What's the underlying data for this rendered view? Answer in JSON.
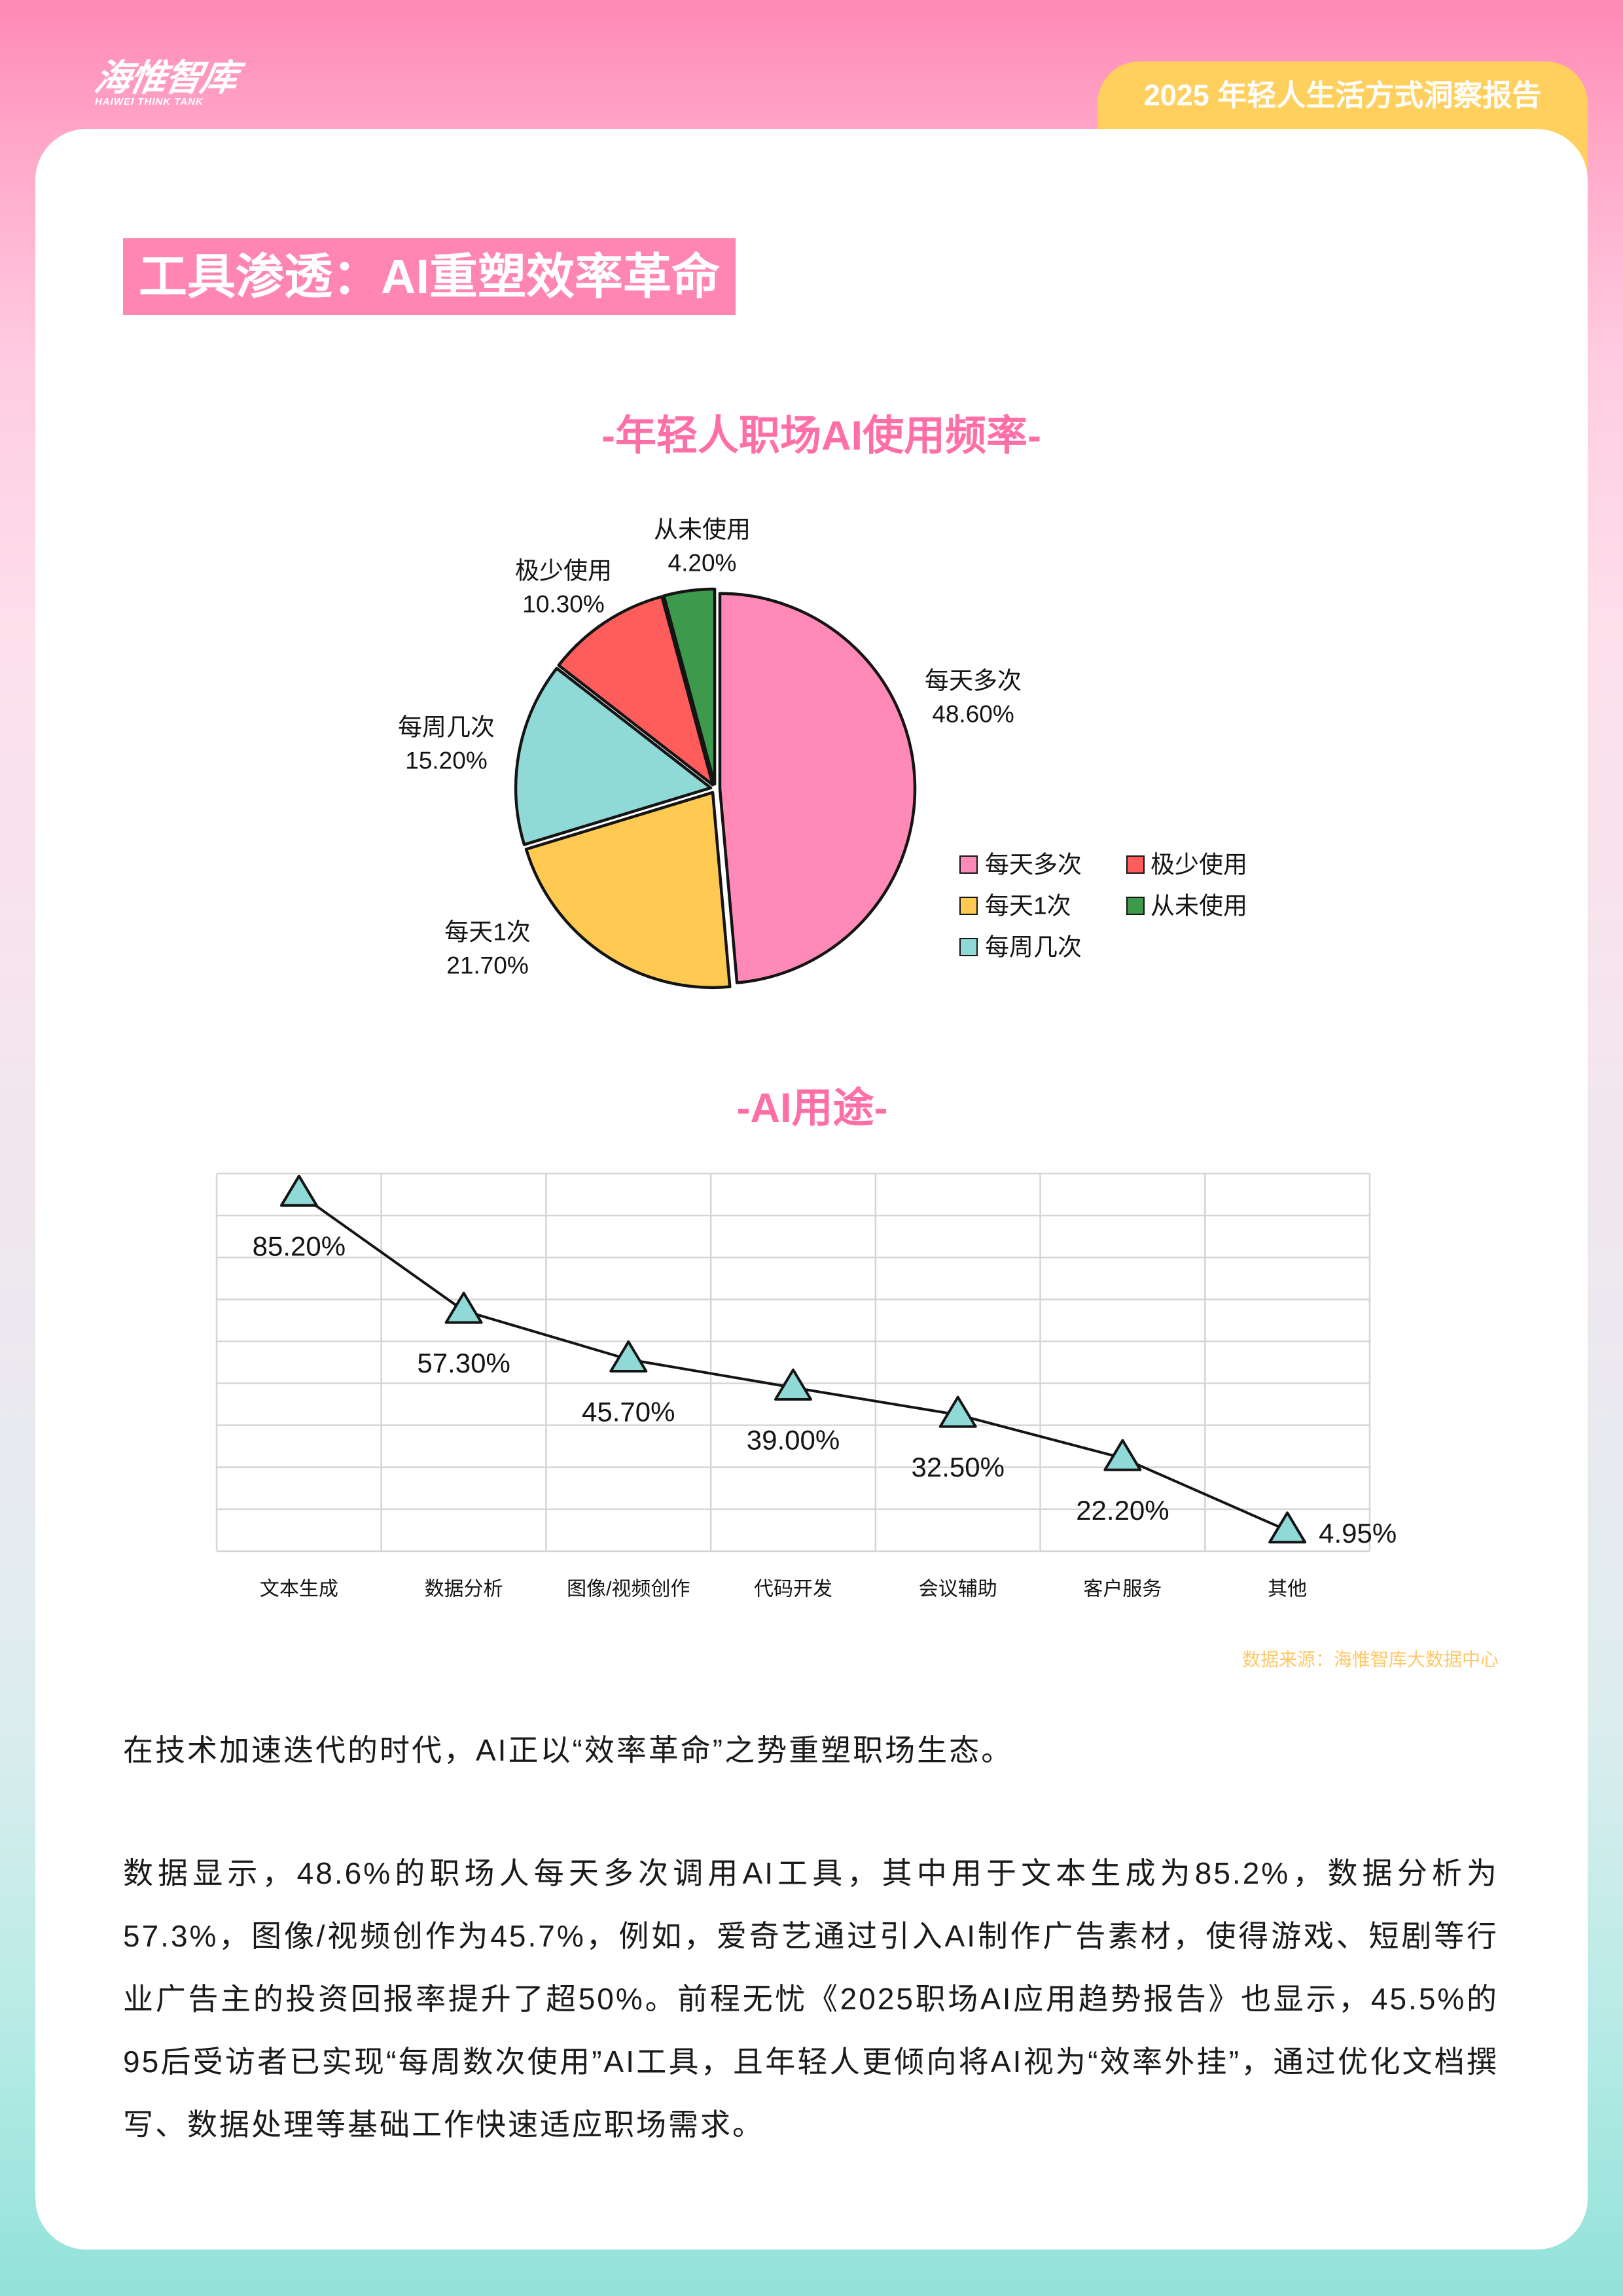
{
  "header": {
    "logo_text": "海惟智库",
    "logo_subtext": "HAIWEI THINK TANK",
    "report_tag": "2025 年轻人生活方式洞察报告"
  },
  "section_title": "工具渗透：AI重塑效率革命",
  "colors": {
    "accent_pink": "#ff6fa7",
    "title_box_pink": "#ff85b3",
    "tag_yellow": "#ffd05e",
    "source_note": "#ffc766",
    "card": "#ffffff"
  },
  "chart_data": [
    {
      "type": "pie",
      "title": "-年轻人职场AI使用频率-",
      "categories": [
        "每天多次",
        "每天1次",
        "每周几次",
        "极少使用",
        "从未使用"
      ],
      "values": [
        48.6,
        21.7,
        15.2,
        10.3,
        4.2
      ],
      "unit": "%",
      "colors": [
        "#ff8ab7",
        "#ffca52",
        "#8fd9d7",
        "#ff5c5c",
        "#3d9a4c"
      ],
      "legend_position": "lower right"
    },
    {
      "type": "line",
      "title": "-AI用途-",
      "categories": [
        "文本生成",
        "数据分析",
        "图像/视频创作",
        "代码开发",
        "会议辅助",
        "客户服务",
        "其他"
      ],
      "values": [
        85.2,
        57.3,
        45.7,
        39.0,
        32.5,
        22.2,
        4.95
      ],
      "unit": "%",
      "ylim": [
        0,
        90
      ],
      "grid": true,
      "marker_color": "#8fd9d7",
      "line_color": "#141414",
      "xlabel": "",
      "ylabel": ""
    }
  ],
  "source_note": "数据来源：海惟智库大数据中心",
  "body": {
    "intro": "在技术加速迭代的时代，AI正以“效率革命”之势重塑职场生态。",
    "paragraph": "数据显示，48.6%的职场人每天多次调用AI工具，其中用于文本生成为85.2%，数据分析为57.3%，图像/视频创作为45.7%，例如，爱奇艺通过引入AI制作广告素材，使得游戏、短剧等行业广告主的投资回报率提升了超50%。前程无忧《2025职场AI应用趋势报告》也显示，45.5%的95后受访者已实现“每周数次使用”AI工具，且年轻人更倾向将AI视为“效率外挂”，通过优化文档撰写、数据处理等基础工作快速适应职场需求。"
  }
}
